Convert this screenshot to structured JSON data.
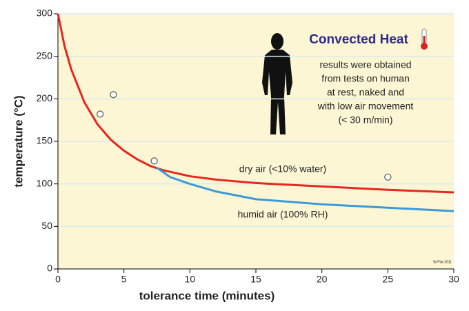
{
  "chart_data": {
    "type": "line",
    "xlabel": "tolerance time  (minutes)",
    "ylabel": "temperature (°C)",
    "xlim": [
      0,
      30
    ],
    "xticks": [
      0,
      5,
      10,
      15,
      20,
      25,
      30
    ],
    "ylim": [
      0,
      300
    ],
    "yticks": [
      0,
      50,
      100,
      150,
      200,
      250,
      300
    ],
    "grid": true,
    "series": [
      {
        "name": "dry air (<10% water)",
        "color": "#e8261c",
        "x": [
          0,
          0.5,
          1,
          2,
          3,
          4,
          5,
          6,
          7,
          8,
          10,
          12,
          15,
          20,
          25,
          30
        ],
        "values": [
          300,
          262,
          235,
          196,
          170,
          152,
          139,
          129,
          121,
          116,
          109,
          105,
          101,
          97,
          93,
          90
        ]
      },
      {
        "name": "humid air (100% RH)",
        "color": "#3a9ad9",
        "x": [
          7.5,
          8.5,
          10,
          12,
          15,
          20,
          25,
          30
        ],
        "values": [
          119,
          108,
          100,
          91,
          82,
          76,
          72,
          68
        ]
      }
    ],
    "points": {
      "x": [
        3.2,
        4.2,
        7.3,
        25
      ],
      "y": [
        182,
        205,
        127,
        108
      ]
    },
    "annotation_title": "Convected Heat",
    "annotation_lines": [
      "results were obtained",
      "from tests on human",
      "at rest, naked and",
      "with low air movement",
      "(< 30 m/min)"
    ],
    "credit": "W Pok 2011"
  }
}
